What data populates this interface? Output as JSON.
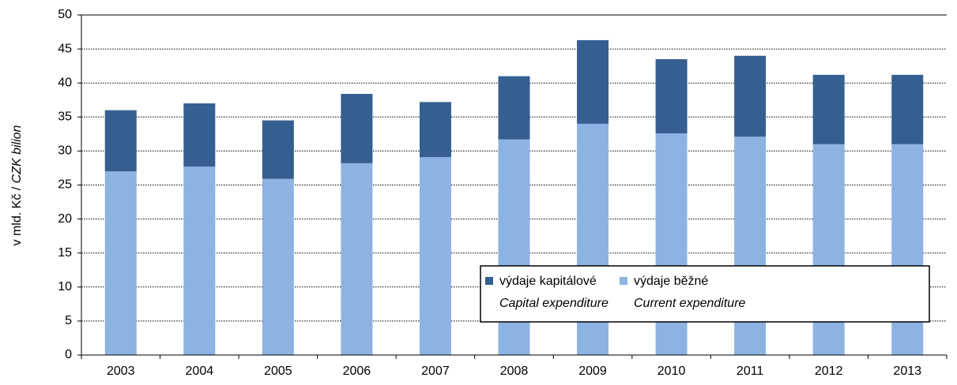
{
  "chart_data": {
    "type": "stacked_bar",
    "ylabel": [
      "v mld. Kč / ",
      "CZK bilion"
    ],
    "categories": [
      "2003",
      "2004",
      "2005",
      "2006",
      "2007",
      "2008",
      "2009",
      "2010",
      "2011",
      "2012",
      "2013"
    ],
    "series": [
      {
        "name": "výdaje běžné",
        "name_en": "Current expenditure",
        "color": "#8db3e2",
        "values": [
          27.0,
          27.7,
          25.9,
          28.2,
          29.1,
          31.7,
          34.0,
          32.6,
          32.1,
          31.0,
          31.0
        ]
      },
      {
        "name": "výdaje kapitálové",
        "name_en": "Capital expenditure",
        "color": "#355f91",
        "values": [
          9.0,
          9.3,
          8.6,
          10.2,
          8.1,
          9.3,
          12.3,
          10.9,
          11.9,
          10.2,
          10.2
        ]
      }
    ],
    "ylim": [
      0,
      50
    ],
    "yticks": [
      0,
      5,
      10,
      15,
      20,
      25,
      30,
      35,
      40,
      45,
      50
    ],
    "grid": true
  }
}
